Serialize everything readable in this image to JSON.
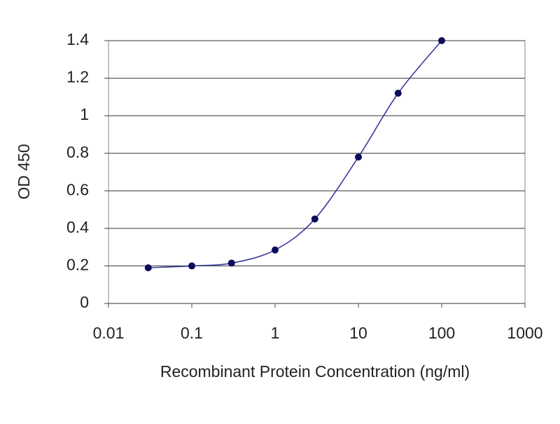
{
  "chart_data": {
    "type": "line",
    "x_label": "Recombinant Protein Concentration (ng/ml)",
    "y_label": "OD 450",
    "x": [
      0.03,
      0.1,
      0.3,
      1,
      3,
      10,
      30,
      100
    ],
    "values": [
      0.19,
      0.2,
      0.215,
      0.285,
      0.45,
      0.78,
      1.12,
      1.4
    ],
    "color": "#3b3b9c",
    "marker_color": "#0c0c5c",
    "xscale": "log",
    "xlim": [
      0.01,
      1000
    ],
    "xticks": [
      0.01,
      0.1,
      1,
      10,
      100,
      1000
    ],
    "ylim": [
      0,
      1.4
    ],
    "yticks": [
      0,
      0.2,
      0.4,
      0.6,
      0.8,
      1,
      1.2,
      1.4
    ],
    "grid": true
  }
}
